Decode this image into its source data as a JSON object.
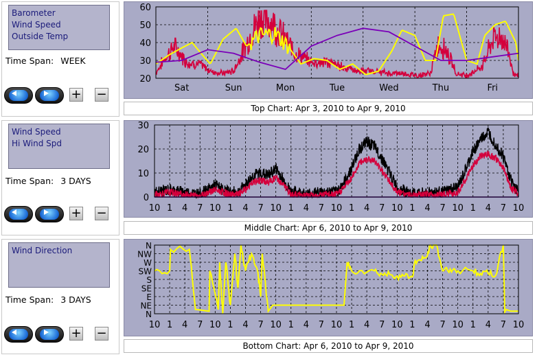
{
  "charts": [
    {
      "series_list": [
        "Barometer",
        "Wind Speed",
        "Outside Temp"
      ],
      "timespan_label": "Time Span:",
      "timespan_value": "WEEK",
      "caption": "Top Chart:  Apr 3, 2010  to  Apr 9, 2010"
    },
    {
      "series_list": [
        "Wind Speed",
        "Hi Wind Spd"
      ],
      "timespan_label": "Time Span:",
      "timespan_value": "3 DAYS",
      "caption": "Middle Chart:  Apr 6, 2010  to  Apr 9, 2010"
    },
    {
      "series_list": [
        "Wind Direction"
      ],
      "timespan_label": "Time Span:",
      "timespan_value": "3 DAYS",
      "caption": "Bottom Chart:  Apr 6, 2010  to  Apr 9, 2010"
    }
  ],
  "controls": {
    "plus": "+",
    "minus": "−"
  },
  "colors": {
    "panel_bg": "#a9aac6",
    "plot_bg": "#a9aac6",
    "grid": "#000000",
    "barometer": "#7a00b8",
    "temp": "#ffff00",
    "wind": "#d4003c",
    "hiwind": "#000000",
    "direction": "#ffff00"
  },
  "chart_data": [
    {
      "type": "line",
      "title": "Top Chart:  Apr 3, 2010  to  Apr 9, 2010",
      "x_tick_labels": [
        "Sat",
        "Sun",
        "Mon",
        "Tue",
        "Wed",
        "Thu",
        "Fri"
      ],
      "y_ticks": [
        "20",
        "30",
        "40",
        "50",
        "60"
      ],
      "ylim": [
        20,
        60
      ],
      "grid": true,
      "x_days": [
        0,
        1,
        2,
        3,
        4,
        5,
        6,
        7
      ],
      "series": [
        {
          "name": "Barometer",
          "color": "#7a00b8",
          "x": [
            0,
            0.5,
            1,
            1.5,
            2,
            2.5,
            3,
            3.5,
            4,
            4.5,
            5,
            5.5,
            6,
            6.5,
            7
          ],
          "y": [
            29,
            30,
            36,
            34,
            29,
            25,
            38,
            44,
            48,
            46,
            38,
            30,
            30,
            32,
            34
          ]
        },
        {
          "name": "Outside Temp",
          "color": "#ffff00",
          "x": [
            0,
            0.25,
            0.5,
            0.7,
            0.9,
            1.05,
            1.3,
            1.55,
            1.75,
            2.0,
            2.3,
            2.55,
            2.8,
            3.05,
            3.3,
            3.55,
            3.8,
            4.05,
            4.3,
            4.55,
            4.75,
            5.0,
            5.2,
            5.4,
            5.55,
            5.75,
            6.0,
            6.2,
            6.35,
            6.55,
            6.75,
            6.95,
            7.0
          ],
          "y": [
            28,
            33,
            37,
            40,
            33,
            28,
            42,
            48,
            38,
            44,
            45,
            38,
            28,
            31,
            30,
            25,
            28,
            22,
            24,
            35,
            47,
            44,
            30,
            30,
            55,
            56,
            30,
            28,
            44,
            50,
            52,
            40,
            30
          ]
        },
        {
          "name": "Wind Speed",
          "color": "#d4003c",
          "x": [
            0,
            0.15,
            0.35,
            0.6,
            0.85,
            1.05,
            1.3,
            1.5,
            1.75,
            2.0,
            2.25,
            2.5,
            2.7,
            3.0,
            3.3,
            3.6,
            3.9,
            4.2,
            4.5,
            4.8,
            5.05,
            5.3,
            5.45,
            5.6,
            5.8,
            6.0,
            6.3,
            6.5,
            6.65,
            6.8,
            6.9,
            7.0
          ],
          "y": [
            21,
            27,
            33,
            26,
            25,
            22,
            21,
            22,
            34,
            46,
            44,
            36,
            30,
            26,
            26,
            24,
            22,
            22,
            21,
            21,
            20,
            21,
            34,
            32,
            21,
            20,
            24,
            36,
            38,
            32,
            21,
            20
          ]
        }
      ]
    },
    {
      "type": "line",
      "title": "Middle Chart:  Apr 6, 2010  to  Apr 9, 2010",
      "x_tick_labels": [
        "10",
        "1",
        "4",
        "7",
        "10",
        "1",
        "4",
        "7",
        "10",
        "1",
        "4",
        "7",
        "10",
        "1",
        "4",
        "7",
        "10",
        "1",
        "4",
        "7",
        "10",
        "1",
        "4",
        "7",
        "10"
      ],
      "y_ticks": [
        "0",
        "10",
        "20",
        "30"
      ],
      "ylim": [
        0,
        30
      ],
      "grid": true,
      "series": [
        {
          "name": "Hi Wind Spd",
          "color": "#000000",
          "x": [
            0,
            1,
            2,
            3,
            3.5,
            4,
            4.5,
            5,
            5.5,
            6,
            6.5,
            7,
            7.5,
            8,
            8.5,
            9,
            9.5,
            10,
            11,
            12,
            12.5,
            13,
            13.5,
            14,
            14.5,
            15,
            16,
            17,
            18,
            19,
            20,
            20.5,
            21,
            21.5,
            22,
            22.5,
            23,
            23.5,
            24
          ],
          "y": [
            2,
            3,
            2,
            1,
            3,
            5,
            3,
            2,
            2,
            5,
            9,
            10,
            9,
            12,
            7,
            2,
            2,
            1,
            2,
            2,
            6,
            12,
            20,
            23,
            21,
            16,
            4,
            1,
            2,
            2,
            4,
            11,
            19,
            24,
            27,
            22,
            17,
            7,
            2
          ]
        },
        {
          "name": "Wind Speed",
          "color": "#d4003c",
          "x": [
            0,
            1,
            2,
            3,
            3.5,
            4,
            4.5,
            5,
            5.5,
            6,
            6.5,
            7,
            7.5,
            8,
            8.5,
            9,
            9.5,
            10,
            11,
            12,
            12.5,
            13,
            13.5,
            14,
            14.5,
            15,
            16,
            17,
            18,
            19,
            20,
            20.5,
            21,
            21.5,
            22,
            22.5,
            23,
            23.5,
            24
          ],
          "y": [
            1,
            2,
            1,
            0.5,
            2,
            3,
            2,
            1,
            1,
            3,
            6,
            7,
            6,
            8,
            5,
            1,
            1,
            0.5,
            1,
            1,
            4,
            8,
            14,
            16,
            15,
            11,
            2,
            0.5,
            1,
            1,
            2,
            7,
            13,
            17,
            18,
            16,
            12,
            4,
            1
          ]
        }
      ]
    },
    {
      "type": "line",
      "title": "Bottom Chart:  Apr 6, 2010  to  Apr 9, 2010",
      "x_tick_labels": [
        "10",
        "1",
        "4",
        "7",
        "10",
        "1",
        "4",
        "7",
        "10",
        "1",
        "4",
        "7",
        "10",
        "1",
        "4",
        "7",
        "10",
        "1",
        "4",
        "7",
        "10",
        "1",
        "4",
        "7",
        "10"
      ],
      "y_tick_labels": [
        "N",
        "NE",
        "E",
        "SE",
        "S",
        "SW",
        "W",
        "NW",
        "N"
      ],
      "grid": true,
      "series": [
        {
          "name": "Wind Direction",
          "color": "#ffff00",
          "x": [
            0,
            1,
            1.05,
            2.3,
            2.7,
            2.75,
            3.6,
            3.65,
            4.2,
            4.3,
            4.5,
            4.7,
            5,
            5.3,
            5.5,
            5.7,
            6.0,
            6.4,
            6.8,
            7.0,
            7.1,
            7.5,
            7.8,
            8.5,
            9,
            12.5,
            12.7,
            13,
            13.5,
            14.5,
            15,
            15.5,
            16,
            16.5,
            17,
            17.2,
            17.6,
            18,
            18.2,
            18.6,
            19,
            19.5,
            20,
            21,
            21.5,
            22,
            22.5,
            23,
            23.1,
            23.2,
            23.5,
            24
          ],
          "y": [
            5,
            5,
            7.5,
            7.5,
            0.5,
            0.5,
            0.3,
            5,
            0.5,
            6,
            0,
            6,
            1,
            7,
            3,
            8,
            5,
            7,
            5,
            2,
            7,
            0.3,
            1,
            1,
            1,
            1,
            6,
            5,
            5,
            5,
            4.6,
            4.6,
            4.4,
            4.4,
            4.3,
            6.2,
            6.2,
            6.8,
            8,
            8,
            5,
            5.2,
            5,
            5,
            4.7,
            4.7,
            4.5,
            8,
            0.2,
            0.5,
            0.3,
            0.3
          ]
        }
      ]
    }
  ]
}
